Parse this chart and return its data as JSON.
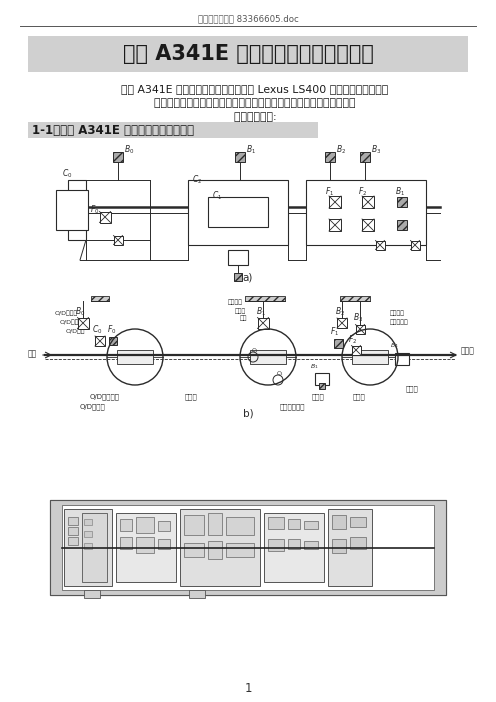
{
  "header_text": "广州市交通学校 83366605.doc",
  "title": "丰田 A341E 自动变速器拆装指导资料",
  "body1": "丰田 A341E 自动变速器普用于丰田凌志 Lexus LS400 汽车上，是辛普森式",
  "body2": "自动变速器的典型代表。它有四个前进档，一个倒档。四档是超速档。",
  "body3": "一、结构原理:",
  "section": "1-1、丰田 A341E 自动变速器结构原理图",
  "page_num": "1",
  "bg_color": "#ffffff",
  "text_color": "#1a1a1a",
  "gray_bg": "#d0d0d0",
  "diagram_color": "#2a2a2a"
}
